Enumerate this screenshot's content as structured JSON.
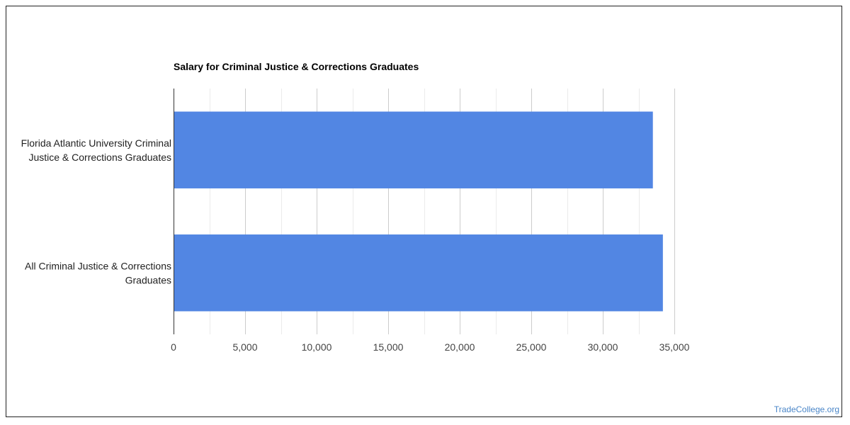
{
  "chart_data": {
    "type": "bar",
    "orientation": "horizontal",
    "title": "Salary for Criminal Justice & Corrections Graduates",
    "xlabel": "",
    "ylabel": "",
    "categories": [
      [
        "Florida Atlantic University Criminal",
        "Justice & Corrections Graduates"
      ],
      [
        "All Criminal Justice & Corrections",
        "Graduates"
      ]
    ],
    "values": [
      33500,
      34200
    ],
    "xlim": [
      0,
      35000
    ],
    "ticks": [
      0,
      5000,
      10000,
      15000,
      20000,
      25000,
      30000,
      35000
    ],
    "tick_labels": [
      "0",
      "5,000",
      "10,000",
      "15,000",
      "20,000",
      "25,000",
      "30,000",
      "35,000"
    ],
    "grid": true,
    "bar_color": "#5286e3"
  },
  "watermark": "TradeCollege.org"
}
